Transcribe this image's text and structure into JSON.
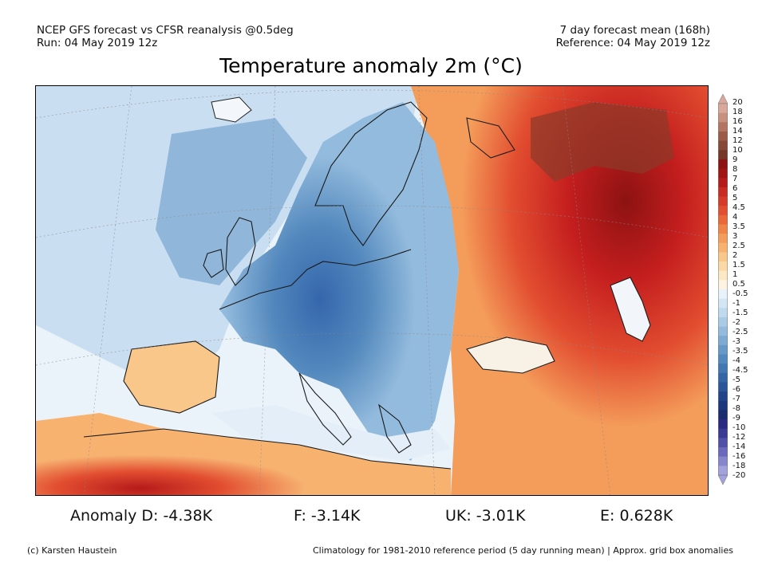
{
  "header": {
    "line1_left": "NCEP GFS forecast vs CFSR reanalysis @0.5deg",
    "line2_left": "Run: 04 May 2019 12z",
    "line1_right": "7 day forecast mean (168h)",
    "line2_right": "Reference: 04 May 2019 12z"
  },
  "title": "Temperature anomaly 2m (°C)",
  "map": {
    "description_region": "Europe, North Africa, Western Russia",
    "colors": {
      "ocean_neutral": "#eaf3fa",
      "cold_light": "#bcd8ee",
      "cold_mid": "#6f9fd0",
      "cold_dark": "#3566ac",
      "warm_light": "#f9c48a",
      "warm_mid": "#ec6a3a",
      "warm_dark": "#c41e1e",
      "warm_extreme": "#8a3a2a"
    }
  },
  "colorbar": {
    "labels": [
      "20",
      "18",
      "16",
      "14",
      "12",
      "10",
      "9",
      "8",
      "7",
      "6",
      "5",
      "4.5",
      "4",
      "3.5",
      "3",
      "2.5",
      "2",
      "1.5",
      "1",
      "0.5",
      "-0.5",
      "-1",
      "-1.5",
      "-2",
      "-2.5",
      "-3",
      "-3.5",
      "-4",
      "-4.5",
      "-5",
      "-6",
      "-7",
      "-8",
      "-9",
      "-10",
      "-12",
      "-14",
      "-16",
      "-18",
      "-20"
    ],
    "colors": [
      "#d9a89a",
      "#c8907e",
      "#b37462",
      "#9c5a48",
      "#884838",
      "#763628",
      "#8d1212",
      "#a11414",
      "#b61a1a",
      "#c92a22",
      "#d63a28",
      "#e24e30",
      "#ea6838",
      "#f08446",
      "#f49c5a",
      "#f7b270",
      "#f9c78a",
      "#fbd9a6",
      "#fde8c4",
      "#fdf3e0",
      "#e8f2fa",
      "#d4e6f4",
      "#bfd9ee",
      "#a9cbe6",
      "#93bbdd",
      "#7caad3",
      "#6699c8",
      "#5288bd",
      "#4277b1",
      "#3466a6",
      "#2a5598",
      "#22458a",
      "#1c387c",
      "#1a2c70",
      "#2a2a82",
      "#3a3a94",
      "#5050a8",
      "#6a6abc",
      "#8686cc",
      "#a2a2dc"
    ]
  },
  "anomalies": {
    "d": "Anomaly D: -4.38K",
    "f": "F: -3.14K",
    "uk": "UK: -3.01K",
    "e": "E: 0.628K"
  },
  "footer": {
    "left": "(c) Karsten Haustein",
    "right": "Climatology for 1981-2010 reference period (5 day running mean) | Approx. grid box anomalies"
  }
}
